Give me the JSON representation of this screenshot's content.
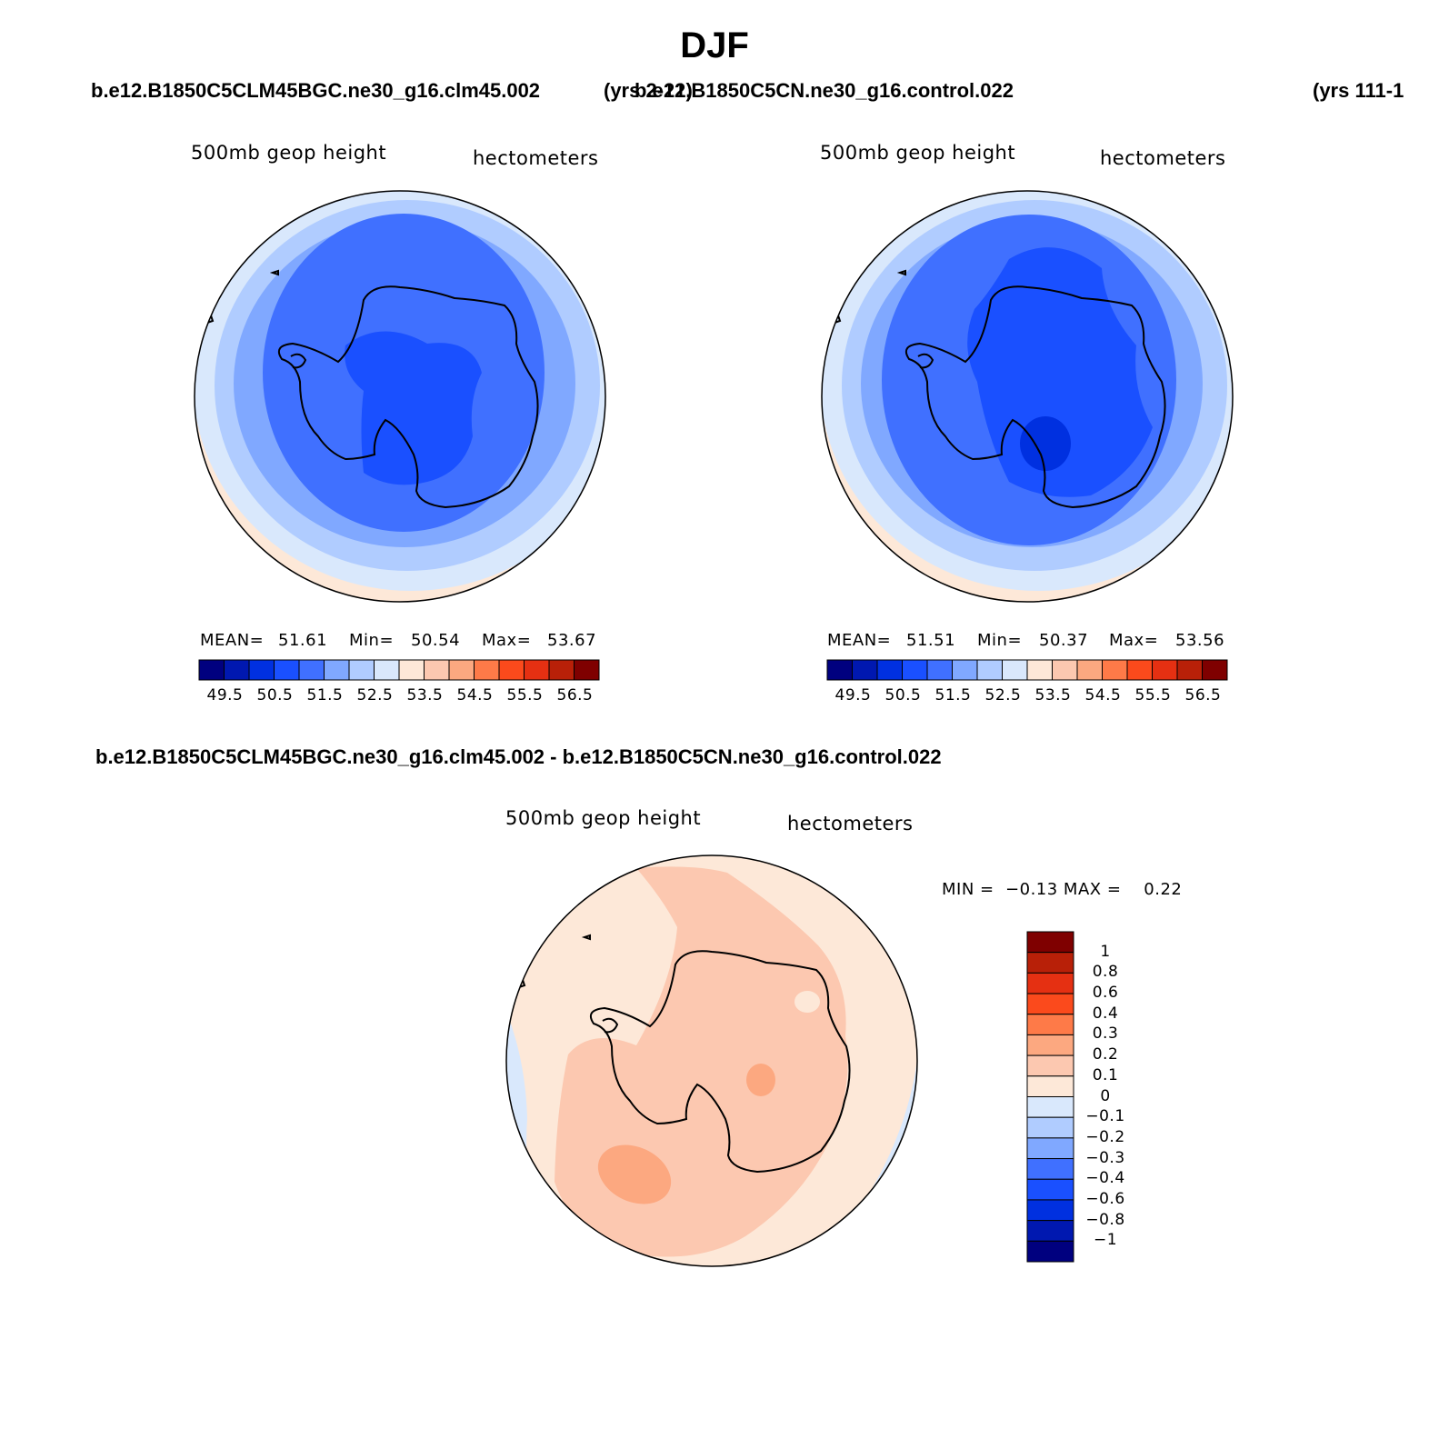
{
  "season": "DJF",
  "top": {
    "case1": "b.e12.B1850C5CLM45BGC.ne30_g16.clm45.002",
    "years1": "(yrs 2-21)",
    "case2": "b.e12.B1850C5CN.ne30_g16.control.022",
    "years2": "(yrs 111-1"
  },
  "panels": {
    "left": {
      "variable": "500mb geop height",
      "units": "hectometers",
      "mean_label": "MEAN=",
      "mean": "51.61",
      "min_label": "Min=",
      "min": "50.54",
      "max_label": "Max=",
      "max": "53.67"
    },
    "right": {
      "variable": "500mb geop height",
      "units": "hectometers",
      "mean_label": "MEAN=",
      "mean": "51.51",
      "min_label": "Min=",
      "min": "50.37",
      "max_label": "Max=",
      "max": "53.56"
    },
    "diff": {
      "title": "b.e12.B1850C5CLM45BGC.ne30_g16.clm45.002 - b.e12.B1850C5CN.ne30_g16.control.022",
      "variable": "500mb geop height",
      "units": "hectometers",
      "minmax": "MIN =  −0.13 MAX =    0.22"
    }
  },
  "colorbar_abs": {
    "colors": [
      "#00007f",
      "#0018b0",
      "#0030e0",
      "#1a50ff",
      "#4070ff",
      "#80a8ff",
      "#b0ccff",
      "#d9e8fc",
      "#fde8d8",
      "#fcc8b0",
      "#fca880",
      "#fe7a48",
      "#fb4a1c",
      "#e53012",
      "#b82008",
      "#7f0000"
    ],
    "labels": [
      "49.5",
      "50.5",
      "51.5",
      "52.5",
      "53.5",
      "54.5",
      "55.5",
      "56.5"
    ]
  },
  "colorbar_diff": {
    "colors_top_to_bottom": [
      "#7f0000",
      "#b82008",
      "#e53012",
      "#fb4a1c",
      "#fe7a48",
      "#fca880",
      "#fcc8b0",
      "#fde8d8",
      "#d9e8fc",
      "#b0ccff",
      "#80a8ff",
      "#4070ff",
      "#1a50ff",
      "#0030e0",
      "#0018b0",
      "#00007f"
    ],
    "labels_top_to_bottom": [
      "1",
      "0.8",
      "0.6",
      "0.4",
      "0.3",
      "0.2",
      "0.1",
      "0",
      "−0.1",
      "−0.2",
      "−0.3",
      "−0.4",
      "−0.6",
      "−0.8",
      "−1"
    ]
  }
}
